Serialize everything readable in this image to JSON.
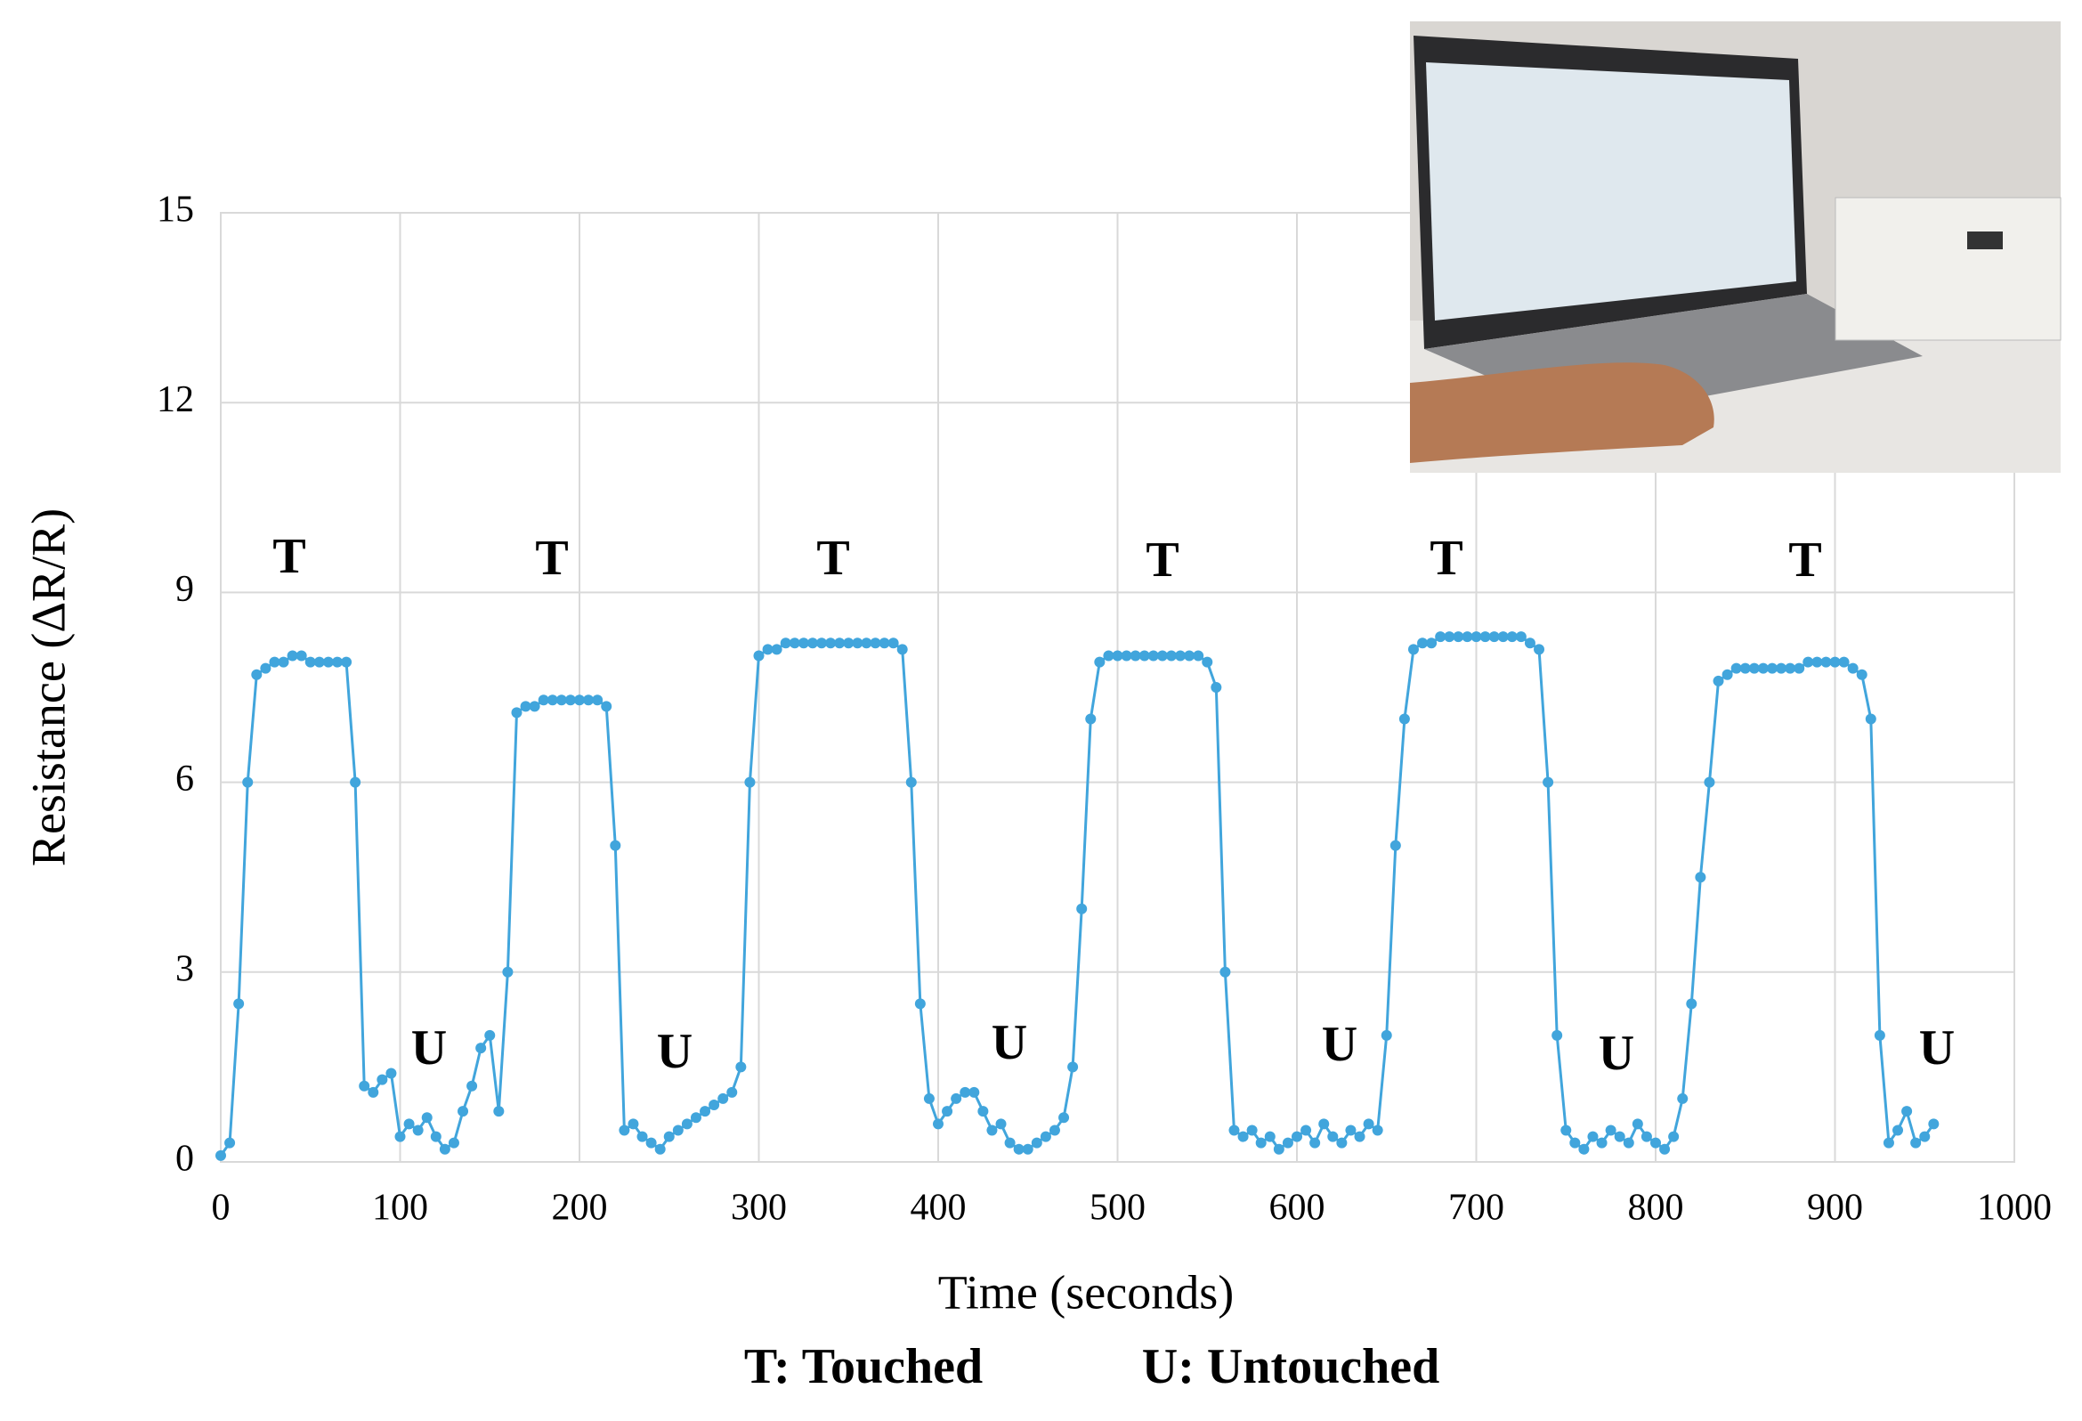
{
  "chart_data": {
    "type": "line",
    "xlabel": "Time (seconds)",
    "ylabel": "Resistance (ΔR/R)",
    "xlim": [
      0,
      1000
    ],
    "xticks": [
      0,
      100,
      200,
      300,
      400,
      500,
      600,
      700,
      800,
      900,
      1000
    ],
    "ylim": [
      0,
      15
    ],
    "yticks": [
      0,
      3,
      6,
      9,
      12,
      15
    ],
    "grid": true,
    "annotations": [
      "T",
      "T",
      "T",
      "T",
      "T",
      "T",
      "U",
      "U",
      "U",
      "U",
      "U",
      "U"
    ],
    "legend_notes": [
      "T: Touched",
      "U: Untouched"
    ],
    "x": [
      0,
      5,
      10,
      15,
      20,
      25,
      30,
      35,
      40,
      45,
      50,
      55,
      60,
      65,
      70,
      75,
      80,
      85,
      90,
      95,
      100,
      105,
      110,
      115,
      120,
      125,
      130,
      135,
      140,
      145,
      150,
      155,
      160,
      165,
      170,
      175,
      180,
      185,
      190,
      195,
      200,
      205,
      210,
      215,
      220,
      225,
      230,
      235,
      240,
      245,
      250,
      255,
      260,
      265,
      270,
      275,
      280,
      285,
      290,
      295,
      300,
      305,
      310,
      315,
      320,
      325,
      330,
      335,
      340,
      345,
      350,
      355,
      360,
      365,
      370,
      375,
      380,
      385,
      390,
      395,
      400,
      405,
      410,
      415,
      420,
      425,
      430,
      435,
      440,
      445,
      450,
      455,
      460,
      465,
      470,
      475,
      480,
      485,
      490,
      495,
      500,
      505,
      510,
      515,
      520,
      525,
      530,
      535,
      540,
      545,
      550,
      555,
      560,
      565,
      570,
      575,
      580,
      585,
      590,
      595,
      600,
      605,
      610,
      615,
      620,
      625,
      630,
      635,
      640,
      645,
      650,
      655,
      660,
      665,
      670,
      675,
      680,
      685,
      690,
      695,
      700,
      705,
      710,
      715,
      720,
      725,
      730,
      735,
      740,
      745,
      750,
      755,
      760,
      765,
      770,
      775,
      780,
      785,
      790,
      795,
      800,
      805,
      810,
      815,
      820,
      825,
      830,
      835,
      840,
      845,
      850,
      855,
      860,
      865,
      870,
      875,
      880,
      885,
      890,
      895,
      900,
      905,
      910,
      915,
      920,
      925,
      930,
      935,
      940,
      945,
      950,
      955
    ],
    "series": [
      {
        "color": "#41a5dc",
        "values": [
          0.1,
          0.3,
          2.5,
          6.0,
          7.7,
          7.8,
          7.9,
          7.9,
          8.0,
          8.0,
          7.9,
          7.9,
          7.9,
          7.9,
          7.9,
          6.0,
          1.2,
          1.1,
          1.3,
          1.4,
          0.4,
          0.6,
          0.5,
          0.7,
          0.4,
          0.2,
          0.3,
          0.8,
          1.2,
          1.8,
          2.0,
          0.8,
          3.0,
          7.1,
          7.2,
          7.2,
          7.3,
          7.3,
          7.3,
          7.3,
          7.3,
          7.3,
          7.3,
          7.2,
          5.0,
          0.5,
          0.6,
          0.4,
          0.3,
          0.2,
          0.4,
          0.5,
          0.6,
          0.7,
          0.8,
          0.9,
          1.0,
          1.1,
          1.5,
          6.0,
          8.0,
          8.1,
          8.1,
          8.2,
          8.2,
          8.2,
          8.2,
          8.2,
          8.2,
          8.2,
          8.2,
          8.2,
          8.2,
          8.2,
          8.2,
          8.2,
          8.1,
          6.0,
          2.5,
          1.0,
          0.6,
          0.8,
          1.0,
          1.1,
          1.1,
          0.8,
          0.5,
          0.6,
          0.3,
          0.2,
          0.2,
          0.3,
          0.4,
          0.5,
          0.7,
          1.5,
          4.0,
          7.0,
          7.9,
          8.0,
          8.0,
          8.0,
          8.0,
          8.0,
          8.0,
          8.0,
          8.0,
          8.0,
          8.0,
          8.0,
          7.9,
          7.5,
          3.0,
          0.5,
          0.4,
          0.5,
          0.3,
          0.4,
          0.2,
          0.3,
          0.4,
          0.5,
          0.3,
          0.6,
          0.4,
          0.3,
          0.5,
          0.4,
          0.6,
          0.5,
          2.0,
          5.0,
          7.0,
          8.1,
          8.2,
          8.2,
          8.3,
          8.3,
          8.3,
          8.3,
          8.3,
          8.3,
          8.3,
          8.3,
          8.3,
          8.3,
          8.2,
          8.1,
          6.0,
          2.0,
          0.5,
          0.3,
          0.2,
          0.4,
          0.3,
          0.5,
          0.4,
          0.3,
          0.6,
          0.4,
          0.3,
          0.2,
          0.4,
          1.0,
          2.5,
          4.5,
          6.0,
          7.6,
          7.7,
          7.8,
          7.8,
          7.8,
          7.8,
          7.8,
          7.8,
          7.8,
          7.8,
          7.9,
          7.9,
          7.9,
          7.9,
          7.9,
          7.8,
          7.7,
          7.0,
          2.0,
          0.3,
          0.5,
          0.8,
          0.3,
          0.4,
          0.6
        ]
      }
    ]
  }
}
